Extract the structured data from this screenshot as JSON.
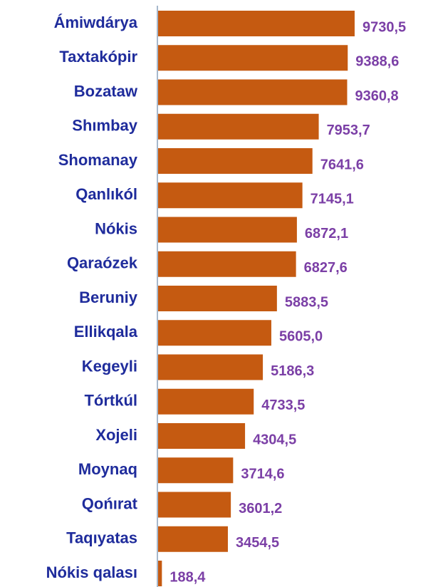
{
  "chart_data": {
    "type": "bar",
    "orientation": "horizontal",
    "categories": [
      "Ámiwdárya",
      "Taxtakópir",
      "Bozataw",
      "Shımbay",
      "Shomanay",
      "Qanlıkól",
      "Nókis",
      "Qaraózek",
      "Beruniy",
      "Ellikqala",
      "Kegeyli",
      "Tórtkúl",
      "Xojeli",
      "Moynaq",
      "Qońırat",
      "Taqıyatas",
      "Nókis qalası"
    ],
    "values": [
      9730.5,
      9388.6,
      9360.8,
      7953.7,
      7641.6,
      7145.1,
      6872.1,
      6827.6,
      5883.5,
      5605.0,
      5186.3,
      4733.5,
      4304.5,
      3714.6,
      3601.2,
      3454.5,
      188.4
    ],
    "value_labels": [
      "9730,5",
      "9388,6",
      "9360,8",
      "7953,7",
      "7641,6",
      "7145,1",
      "6872,1",
      "6827,6",
      "5883,5",
      "5605,0",
      "5186,3",
      "4733,5",
      "4304,5",
      "3714,6",
      "3601,2",
      "3454,5",
      "188,4"
    ],
    "color": "#c55a11",
    "xlim": [
      0,
      10000
    ]
  }
}
